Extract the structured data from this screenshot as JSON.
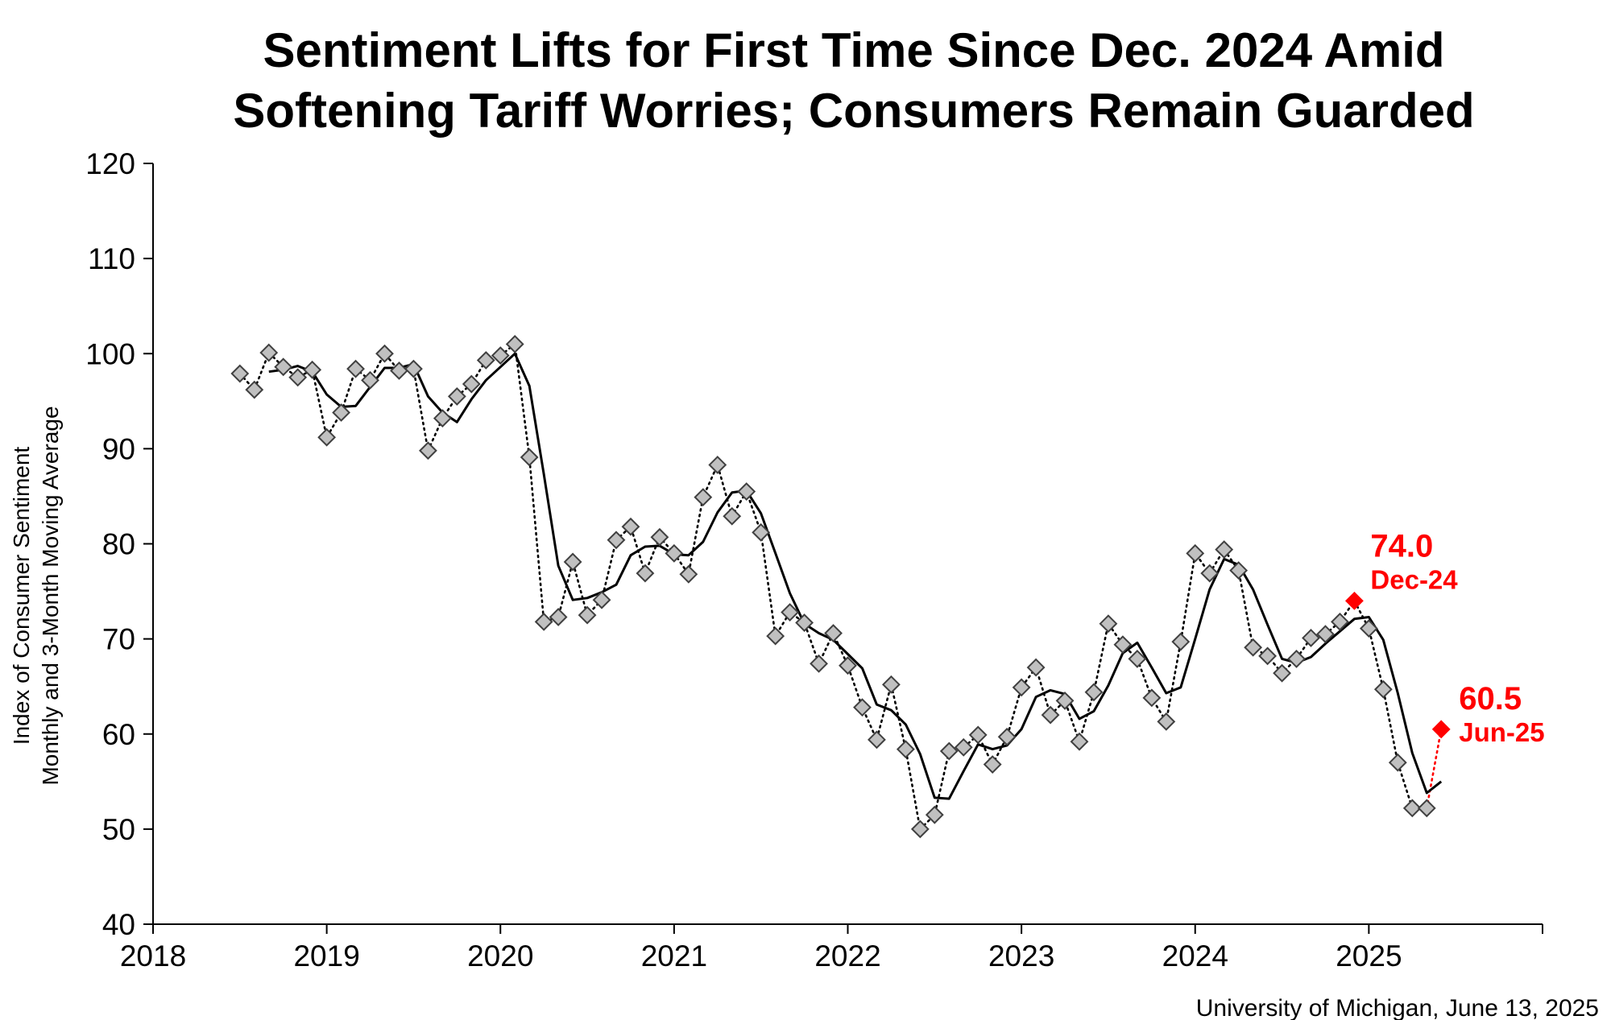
{
  "colors": {
    "monthly_marker_fill": "#c0c0c0",
    "monthly_marker_stroke": "#404040",
    "line": "#000000",
    "highlight": "#ff0000"
  },
  "chart_data": {
    "type": "line",
    "title_lines": [
      "Sentiment Lifts for First Time Since Dec. 2024 Amid",
      "Softening Tariff Worries; Consumers Remain Guarded"
    ],
    "ylabel_lines": [
      "Index of Consumer Sentiment",
      "Monthly and 3-Month Moving Average"
    ],
    "xlabel": "",
    "xlim": [
      2018,
      2026
    ],
    "ylim": [
      40,
      120
    ],
    "x_ticks": [
      2018,
      2019,
      2020,
      2021,
      2022,
      2023,
      2024,
      2025
    ],
    "y_ticks": [
      40,
      50,
      60,
      70,
      80,
      90,
      100,
      110,
      120
    ],
    "grid": false,
    "legend": "none",
    "series": [
      {
        "style": "dotted-with-diamonds",
        "start": "2018-07",
        "values": [
          97.9,
          96.2,
          100.1,
          98.6,
          97.5,
          98.3,
          91.2,
          93.8,
          98.4,
          97.2,
          100.0,
          98.2,
          98.4,
          89.8,
          93.2,
          95.5,
          96.8,
          99.3,
          99.8,
          101.0,
          89.1,
          71.8,
          72.3,
          78.1,
          72.5,
          74.1,
          80.4,
          81.8,
          76.9,
          80.7,
          79.0,
          76.8,
          84.9,
          88.3,
          82.9,
          85.5,
          81.2,
          70.3,
          72.8,
          71.7,
          67.4,
          70.6,
          67.2,
          62.8,
          59.4,
          65.2,
          58.4,
          50.0,
          51.5,
          58.2,
          58.6,
          59.9,
          56.8,
          59.7,
          64.9,
          67.0,
          62.0,
          63.5,
          59.2,
          64.4,
          71.6,
          69.4,
          67.9,
          63.8,
          61.3,
          69.7,
          79.0,
          76.9,
          79.4,
          77.2,
          69.1,
          68.2,
          66.4,
          67.9,
          70.1,
          70.5,
          71.8,
          74.0,
          71.1,
          64.7,
          57.0,
          52.2,
          52.2,
          60.5
        ]
      },
      {
        "name": "3-Month Moving Average",
        "style": "solid",
        "start": "2018-09",
        "values": [
          98.1,
          98.3,
          98.7,
          98.1,
          95.7,
          94.4,
          94.5,
          96.5,
          98.5,
          98.5,
          98.9,
          95.5,
          93.8,
          92.8,
          95.2,
          97.2,
          98.6,
          100.0,
          96.6,
          87.3,
          77.7,
          74.1,
          74.3,
          74.9,
          75.7,
          78.8,
          79.7,
          79.8,
          78.9,
          78.8,
          80.2,
          83.3,
          85.4,
          85.6,
          83.2,
          79.0,
          74.8,
          71.6,
          70.6,
          69.9,
          68.4,
          66.9,
          63.1,
          62.5,
          61.0,
          57.9,
          53.3,
          53.2,
          56.1,
          58.9,
          58.4,
          58.8,
          60.5,
          63.9,
          64.6,
          64.2,
          61.6,
          62.4,
          65.1,
          68.5,
          69.6,
          67.0,
          64.3,
          64.9,
          70.0,
          75.2,
          78.4,
          77.8,
          75.2,
          71.5,
          67.9,
          67.5,
          68.1,
          69.5,
          70.8,
          72.1,
          72.3,
          69.9,
          64.3,
          58.0,
          53.8,
          55.0
        ]
      }
    ],
    "annotations": [
      {
        "value": "74.0",
        "date": "Dec-24",
        "x": "2024-12",
        "y": 74.0
      },
      {
        "value": "60.5",
        "date": "Jun-25",
        "x": "2025-06",
        "y": 60.5
      }
    ],
    "source": "University of Michigan, June 13, 2025"
  }
}
